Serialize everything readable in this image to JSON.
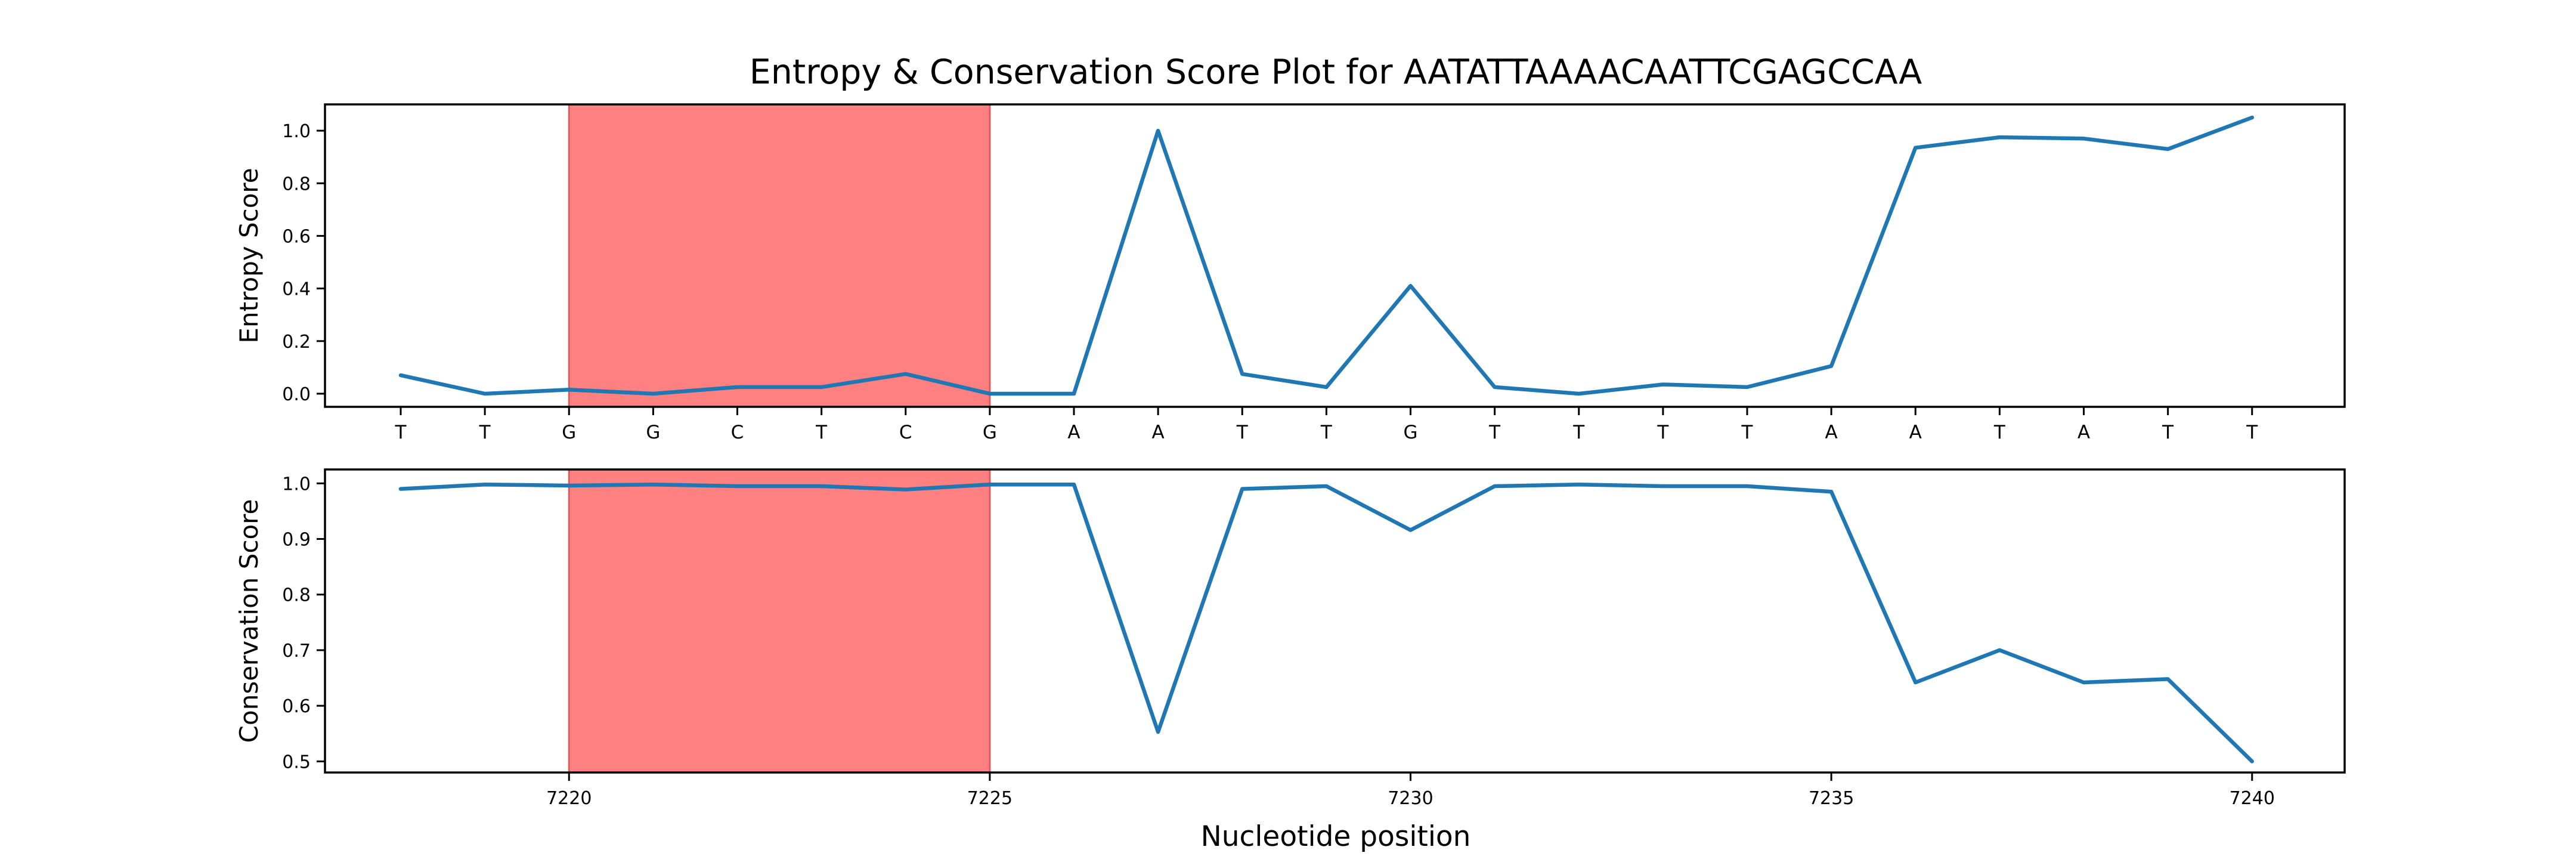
{
  "chart_data": {
    "type": "line",
    "title": "Entropy & Conservation Score Plot for AATATTAAAACAATTCGAGCCAA",
    "xlabel": "Nucleotide position",
    "x": [
      7218,
      7219,
      7220,
      7221,
      7222,
      7223,
      7224,
      7225,
      7226,
      7227,
      7228,
      7229,
      7230,
      7231,
      7232,
      7233,
      7234,
      7235,
      7236,
      7237,
      7238,
      7239,
      7240
    ],
    "xlim": [
      7217.1,
      7241.1
    ],
    "xticks": [
      7220,
      7225,
      7230,
      7235,
      7240
    ],
    "nucleotides": [
      "T",
      "T",
      "G",
      "G",
      "C",
      "T",
      "C",
      "G",
      "A",
      "A",
      "T",
      "T",
      "G",
      "T",
      "T",
      "T",
      "T",
      "A",
      "A",
      "T",
      "A",
      "T",
      "T"
    ],
    "highlight_region": {
      "x_start": 7220,
      "x_end": 7225,
      "color": "#ff8080",
      "edge_color": "#e05a5a"
    },
    "line_color": "#1f77b4",
    "panels": [
      {
        "ylabel": "Entropy Score",
        "ylim": [
          -0.05,
          1.1
        ],
        "yticks": [
          0.0,
          0.2,
          0.4,
          0.6,
          0.8,
          1.0
        ],
        "ytick_labels": [
          "0.0",
          "0.2",
          "0.4",
          "0.6",
          "0.8",
          "1.0"
        ],
        "values": [
          0.07,
          0.0,
          0.015,
          0.0,
          0.025,
          0.025,
          0.075,
          0.0,
          0.0,
          1.0,
          0.075,
          0.025,
          0.41,
          0.025,
          0.0,
          0.035,
          0.025,
          0.105,
          0.935,
          0.975,
          0.97,
          0.93,
          1.05
        ]
      },
      {
        "ylabel": "Conservation Score",
        "ylim": [
          0.48,
          1.025
        ],
        "yticks": [
          0.5,
          0.6,
          0.7,
          0.8,
          0.9,
          1.0
        ],
        "ytick_labels": [
          "0.5",
          "0.6",
          "0.7",
          "0.8",
          "0.9",
          "1.0"
        ],
        "values": [
          0.99,
          0.998,
          0.996,
          0.998,
          0.995,
          0.995,
          0.989,
          0.998,
          0.998,
          0.553,
          0.99,
          0.995,
          0.916,
          0.995,
          0.998,
          0.995,
          0.995,
          0.985,
          0.642,
          0.7,
          0.642,
          0.648,
          0.5
        ]
      }
    ]
  }
}
